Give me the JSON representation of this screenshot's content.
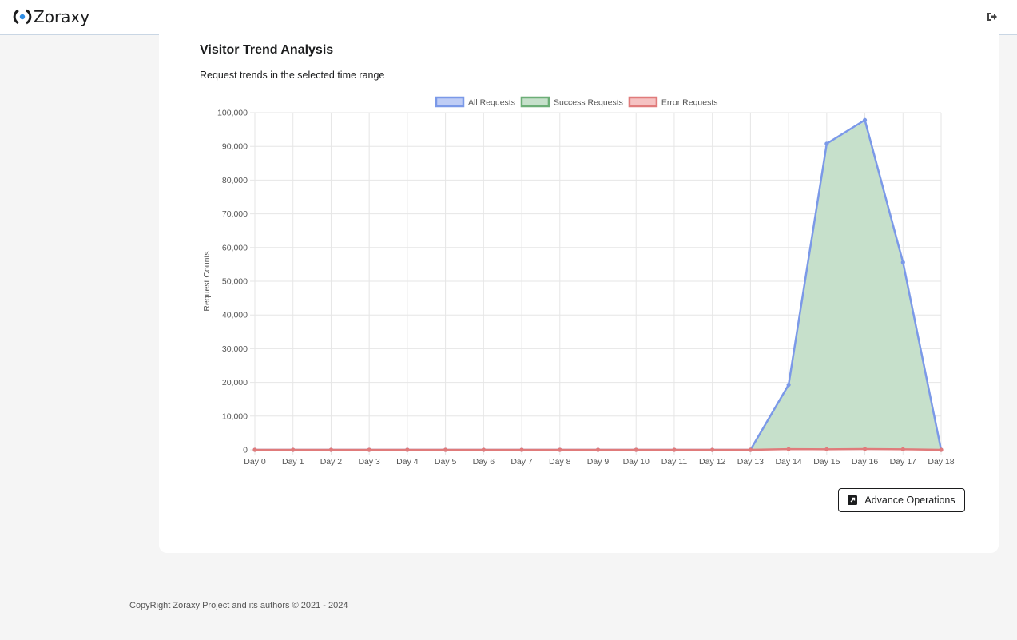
{
  "app": {
    "name": "Zoraxy"
  },
  "header": {
    "logout_icon": "logout-icon"
  },
  "card": {
    "title": "Visitor Trend Analysis",
    "subtitle": "Request trends in the selected time range",
    "advance_button": "Advance Operations",
    "advance_icon": "external-link-icon"
  },
  "chart_data": {
    "type": "line",
    "categories": [
      "Day 0",
      "Day 1",
      "Day 2",
      "Day 3",
      "Day 4",
      "Day 5",
      "Day 6",
      "Day 7",
      "Day 8",
      "Day 9",
      "Day 10",
      "Day 11",
      "Day 12",
      "Day 13",
      "Day 14",
      "Day 15",
      "Day 16",
      "Day 17",
      "Day 18"
    ],
    "series": [
      {
        "name": "All Requests",
        "color": "#7b99e8",
        "fill": "#bfcdf5",
        "values": [
          0,
          0,
          0,
          0,
          0,
          0,
          0,
          0,
          0,
          0,
          0,
          0,
          0,
          0,
          19300,
          90800,
          97800,
          55600,
          0
        ]
      },
      {
        "name": "Success Requests",
        "color": "#6cae77",
        "fill": "#c6e0cb",
        "values": [
          0,
          0,
          0,
          0,
          0,
          0,
          0,
          0,
          0,
          0,
          0,
          0,
          0,
          0,
          19000,
          90500,
          97400,
          55300,
          0
        ]
      },
      {
        "name": "Error Requests",
        "color": "#e07b7b",
        "fill": "#f5c2c2",
        "values": [
          0,
          0,
          0,
          0,
          0,
          0,
          0,
          0,
          0,
          0,
          0,
          0,
          0,
          0,
          200,
          150,
          250,
          150,
          0
        ]
      }
    ],
    "ylabel": "Request Counts",
    "xlabel": "",
    "ylim": [
      0,
      100000
    ],
    "yticks": [
      "0",
      "10,000",
      "20,000",
      "30,000",
      "40,000",
      "50,000",
      "60,000",
      "70,000",
      "80,000",
      "90,000",
      "100,000"
    ],
    "legend": "top-center",
    "grid": true
  },
  "footer": {
    "text": "CopyRight Zoraxy Project and its authors © 2021 - 2024"
  }
}
